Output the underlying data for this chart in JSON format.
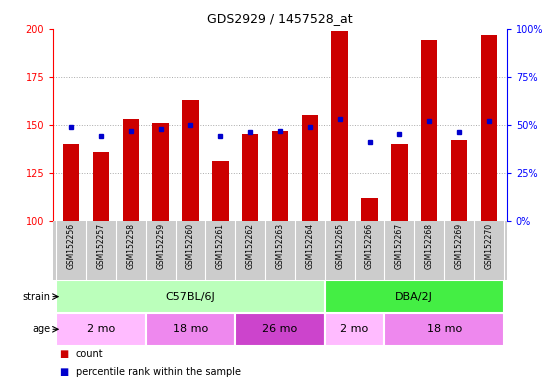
{
  "title": "GDS2929 / 1457528_at",
  "samples": [
    "GSM152256",
    "GSM152257",
    "GSM152258",
    "GSM152259",
    "GSM152260",
    "GSM152261",
    "GSM152262",
    "GSM152263",
    "GSM152264",
    "GSM152265",
    "GSM152266",
    "GSM152267",
    "GSM152268",
    "GSM152269",
    "GSM152270"
  ],
  "counts": [
    140,
    136,
    153,
    151,
    163,
    131,
    145,
    147,
    155,
    199,
    112,
    140,
    194,
    142,
    197
  ],
  "percentile_ranks": [
    49,
    44,
    47,
    48,
    50,
    44,
    46,
    47,
    49,
    53,
    41,
    45,
    52,
    46,
    52
  ],
  "ylim_left": [
    100,
    200
  ],
  "ylim_right": [
    0,
    100
  ],
  "bar_color": "#cc0000",
  "dot_color": "#0000cc",
  "grid_color": "#aaaaaa",
  "strain_groups": [
    {
      "label": "C57BL/6J",
      "start": 0,
      "end": 9,
      "color": "#bbffbb"
    },
    {
      "label": "DBA/2J",
      "start": 9,
      "end": 15,
      "color": "#44ee44"
    }
  ],
  "age_group_colors": [
    "#ffbbff",
    "#ee88ee",
    "#cc44cc",
    "#ffbbff",
    "#ee88ee"
  ],
  "age_groups": [
    {
      "label": "2 mo",
      "start": 0,
      "end": 3
    },
    {
      "label": "18 mo",
      "start": 3,
      "end": 6
    },
    {
      "label": "26 mo",
      "start": 6,
      "end": 9
    },
    {
      "label": "2 mo",
      "start": 9,
      "end": 11
    },
    {
      "label": "18 mo",
      "start": 11,
      "end": 15
    }
  ],
  "legend_count_label": "count",
  "legend_pct_label": "percentile rank within the sample",
  "xlabel_bg": "#cccccc",
  "title_fontsize": 9,
  "tick_fontsize": 7,
  "label_fontsize": 7,
  "bar_fontsize": 6
}
